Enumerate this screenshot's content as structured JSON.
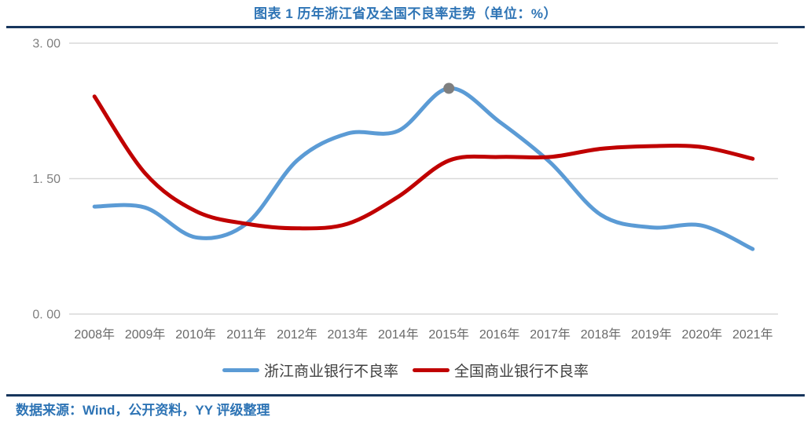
{
  "title": {
    "text": "图表 1 历年浙江省及全国不良率走势（单位：%）",
    "color": "#2E74B5"
  },
  "dividers": {
    "color": "#17365D"
  },
  "footer": {
    "text": "数据来源：Wind，公开资料，YY 评级整理",
    "color": "#2E74B5"
  },
  "chart_data": {
    "type": "line",
    "title": "图表 1 历年浙江省及全国不良率走势（单位：%）",
    "categories": [
      "2008年",
      "2009年",
      "2010年",
      "2011年",
      "2012年",
      "2013年",
      "2014年",
      "2015年",
      "2016年",
      "2017年",
      "2018年",
      "2019年",
      "2020年",
      "2021年"
    ],
    "series": [
      {
        "name": "浙江商业银行不良率",
        "color": "#5B9BD5",
        "values": [
          1.19,
          1.18,
          0.85,
          1.0,
          1.7,
          2.0,
          2.03,
          2.5,
          2.13,
          1.68,
          1.1,
          0.96,
          0.98,
          0.72
        ]
      },
      {
        "name": "全国商业银行不良率",
        "color": "#C00000",
        "values": [
          2.41,
          1.56,
          1.14,
          1.0,
          0.95,
          1.0,
          1.3,
          1.7,
          1.74,
          1.74,
          1.83,
          1.86,
          1.85,
          1.72
        ]
      }
    ],
    "y_axis": {
      "range": [
        0,
        3
      ],
      "ticks": [
        {
          "label": "0. 00",
          "value": 0
        },
        {
          "label": "1. 50",
          "value": 1.5
        },
        {
          "label": "3. 00",
          "value": 3
        }
      ],
      "label_color": "#7F7F7F"
    },
    "x_axis": {
      "label_color": "#696969"
    },
    "gridline_color": "#D9D9D9",
    "grid": "horizontal",
    "legend_position": "bottom",
    "peak_marker": {
      "series": "浙江商业银行不良率",
      "series_index": 0,
      "category": "2015年",
      "category_index": 7,
      "value": 2.5,
      "color": "#7F7F7F"
    }
  }
}
